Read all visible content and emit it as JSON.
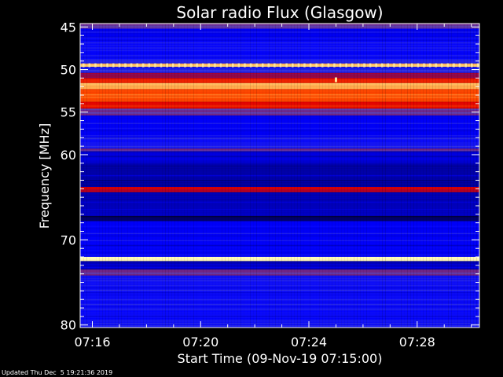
{
  "footer": {
    "updated_text": "Updated Thu Dec  5 19:21:36 2019"
  },
  "chart_data": {
    "type": "heatmap",
    "title": "Solar radio Flux (Glasgow)",
    "xlabel": "Start Time (09-Nov-19 07:15:00)",
    "ylabel": "Frequency [MHz]",
    "x_axis": {
      "unit": "minutes after 07:15:00",
      "range": [
        0.55,
        15.3
      ],
      "ticks": [
        {
          "value": 1,
          "label": "07:16"
        },
        {
          "value": 5,
          "label": "07:20"
        },
        {
          "value": 9,
          "label": "07:24"
        },
        {
          "value": 13,
          "label": "07:28"
        }
      ]
    },
    "y_axis": {
      "unit": "MHz",
      "range": [
        44.6,
        80.3
      ],
      "reversed": true,
      "ticks": [
        {
          "value": 45,
          "label": "45"
        },
        {
          "value": 50,
          "label": "50"
        },
        {
          "value": 55,
          "label": "55"
        },
        {
          "value": 60,
          "label": "60"
        },
        {
          "value": 70,
          "label": "70"
        },
        {
          "value": 80,
          "label": "80"
        }
      ]
    },
    "colormap": [
      "#000030",
      "#0000a0",
      "#0000ff",
      "#5050d0",
      "#900040",
      "#e00000",
      "#ff5000",
      "#ffc060",
      "#ffffc0"
    ],
    "frequency_bands": [
      {
        "from": 44.6,
        "to": 45.2,
        "level": 0.42
      },
      {
        "from": 45.2,
        "to": 46.2,
        "level": 0.22
      },
      {
        "from": 46.2,
        "to": 48.6,
        "level": 0.26
      },
      {
        "from": 48.6,
        "to": 49.3,
        "level": 0.3
      },
      {
        "from": 49.3,
        "to": 49.7,
        "level": 0.9
      },
      {
        "from": 49.7,
        "to": 50.4,
        "level": 0.3
      },
      {
        "from": 50.4,
        "to": 51.0,
        "level": 0.48
      },
      {
        "from": 51.0,
        "to": 51.6,
        "level": 0.68
      },
      {
        "from": 51.6,
        "to": 52.3,
        "level": 0.86
      },
      {
        "from": 52.3,
        "to": 53.8,
        "level": 0.74
      },
      {
        "from": 53.8,
        "to": 54.6,
        "level": 0.64
      },
      {
        "from": 54.6,
        "to": 55.4,
        "level": 0.44
      },
      {
        "from": 55.4,
        "to": 58.0,
        "level": 0.24
      },
      {
        "from": 58.0,
        "to": 59.3,
        "level": 0.28
      },
      {
        "from": 59.3,
        "to": 59.6,
        "level": 0.42
      },
      {
        "from": 59.6,
        "to": 61.0,
        "level": 0.2
      },
      {
        "from": 61.0,
        "to": 63.8,
        "level": 0.14
      },
      {
        "from": 63.8,
        "to": 64.4,
        "level": 0.6
      },
      {
        "from": 64.4,
        "to": 67.2,
        "level": 0.16
      },
      {
        "from": 67.2,
        "to": 67.8,
        "level": 0.06
      },
      {
        "from": 67.8,
        "to": 72.0,
        "level": 0.24
      },
      {
        "from": 72.0,
        "to": 72.5,
        "level": 0.98
      },
      {
        "from": 72.5,
        "to": 73.5,
        "level": 0.16
      },
      {
        "from": 73.5,
        "to": 74.2,
        "level": 0.44
      },
      {
        "from": 74.2,
        "to": 80.3,
        "level": 0.27
      }
    ],
    "bursts": [
      {
        "frequency": 49.5,
        "level": 0.95,
        "note": "periodic dotted line"
      },
      {
        "time": 10.0,
        "frequency": 51.2,
        "level": 0.95
      }
    ]
  }
}
